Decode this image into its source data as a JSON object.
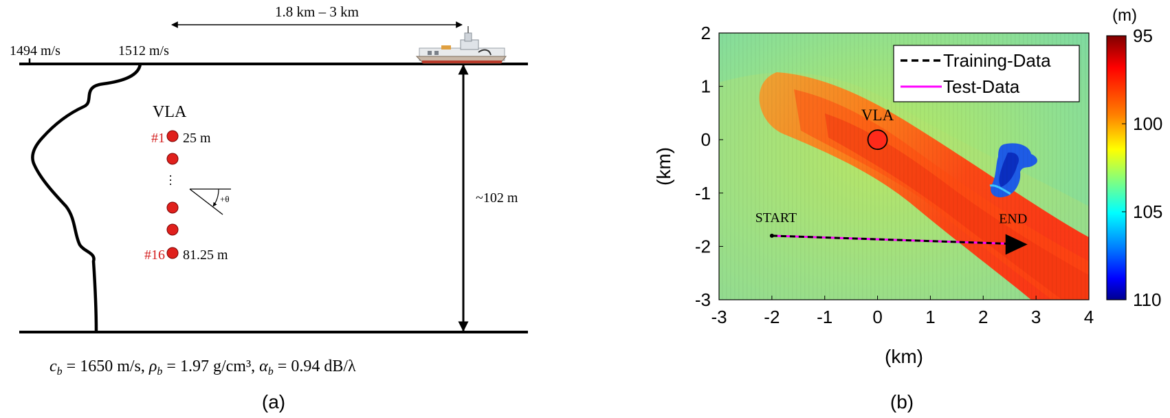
{
  "panel_a": {
    "caption": "(a)",
    "range_label": "1.8 km – 3 km",
    "ssp_min_label": "1494 m/s",
    "ssp_max_label": "1512 m/s",
    "array_label": "VLA",
    "depth_label": "~102 m",
    "theta_label": "+θ",
    "elements": [
      {
        "tag": "#1",
        "depth": "25 m"
      },
      {
        "tag": "#16",
        "depth": "81.25 m"
      }
    ],
    "bottom_params": {
      "cb_value": "1650",
      "cb_unit": "m/s",
      "rho_value": "1.97",
      "rho_unit": "g/cm³",
      "alpha_value": "0.94",
      "alpha_unit": "dB/λ"
    },
    "ship_icon": "ship-icon"
  },
  "panel_b": {
    "caption": "(b)",
    "colorbar": {
      "unit": "(m)",
      "ticks": [
        "95",
        "100",
        "105",
        "110"
      ],
      "range": [
        95,
        110
      ],
      "colors": [
        "#800000",
        "#ff0000",
        "#ff8000",
        "#ffff00",
        "#80ff80",
        "#00ffff",
        "#0080ff",
        "#0000ff",
        "#00008f"
      ]
    },
    "labels": {
      "vla": "VLA",
      "start": "START",
      "end": "END"
    },
    "legend": [
      {
        "label": "Training-Data",
        "color": "#000000",
        "style": "dashed"
      },
      {
        "label": "Test-Data",
        "color": "#ff00ff",
        "style": "solid"
      }
    ],
    "chart_data": {
      "type": "heatmap",
      "title": "",
      "xlabel": "(km)",
      "ylabel": "(km)",
      "xlim": [
        -3,
        4
      ],
      "ylim": [
        -3,
        2
      ],
      "xticks": [
        "-3",
        "-2",
        "-1",
        "0",
        "1",
        "2",
        "3",
        "4"
      ],
      "yticks": [
        "2",
        "1",
        "0",
        "-1",
        "-2",
        "-3"
      ],
      "vla_position": [
        0,
        0
      ],
      "track_start": [
        -2,
        -1.8
      ],
      "track_end": [
        2.5,
        -1.95
      ],
      "value_unit": "m (water depth)",
      "value_range": [
        95,
        110
      ]
    }
  }
}
